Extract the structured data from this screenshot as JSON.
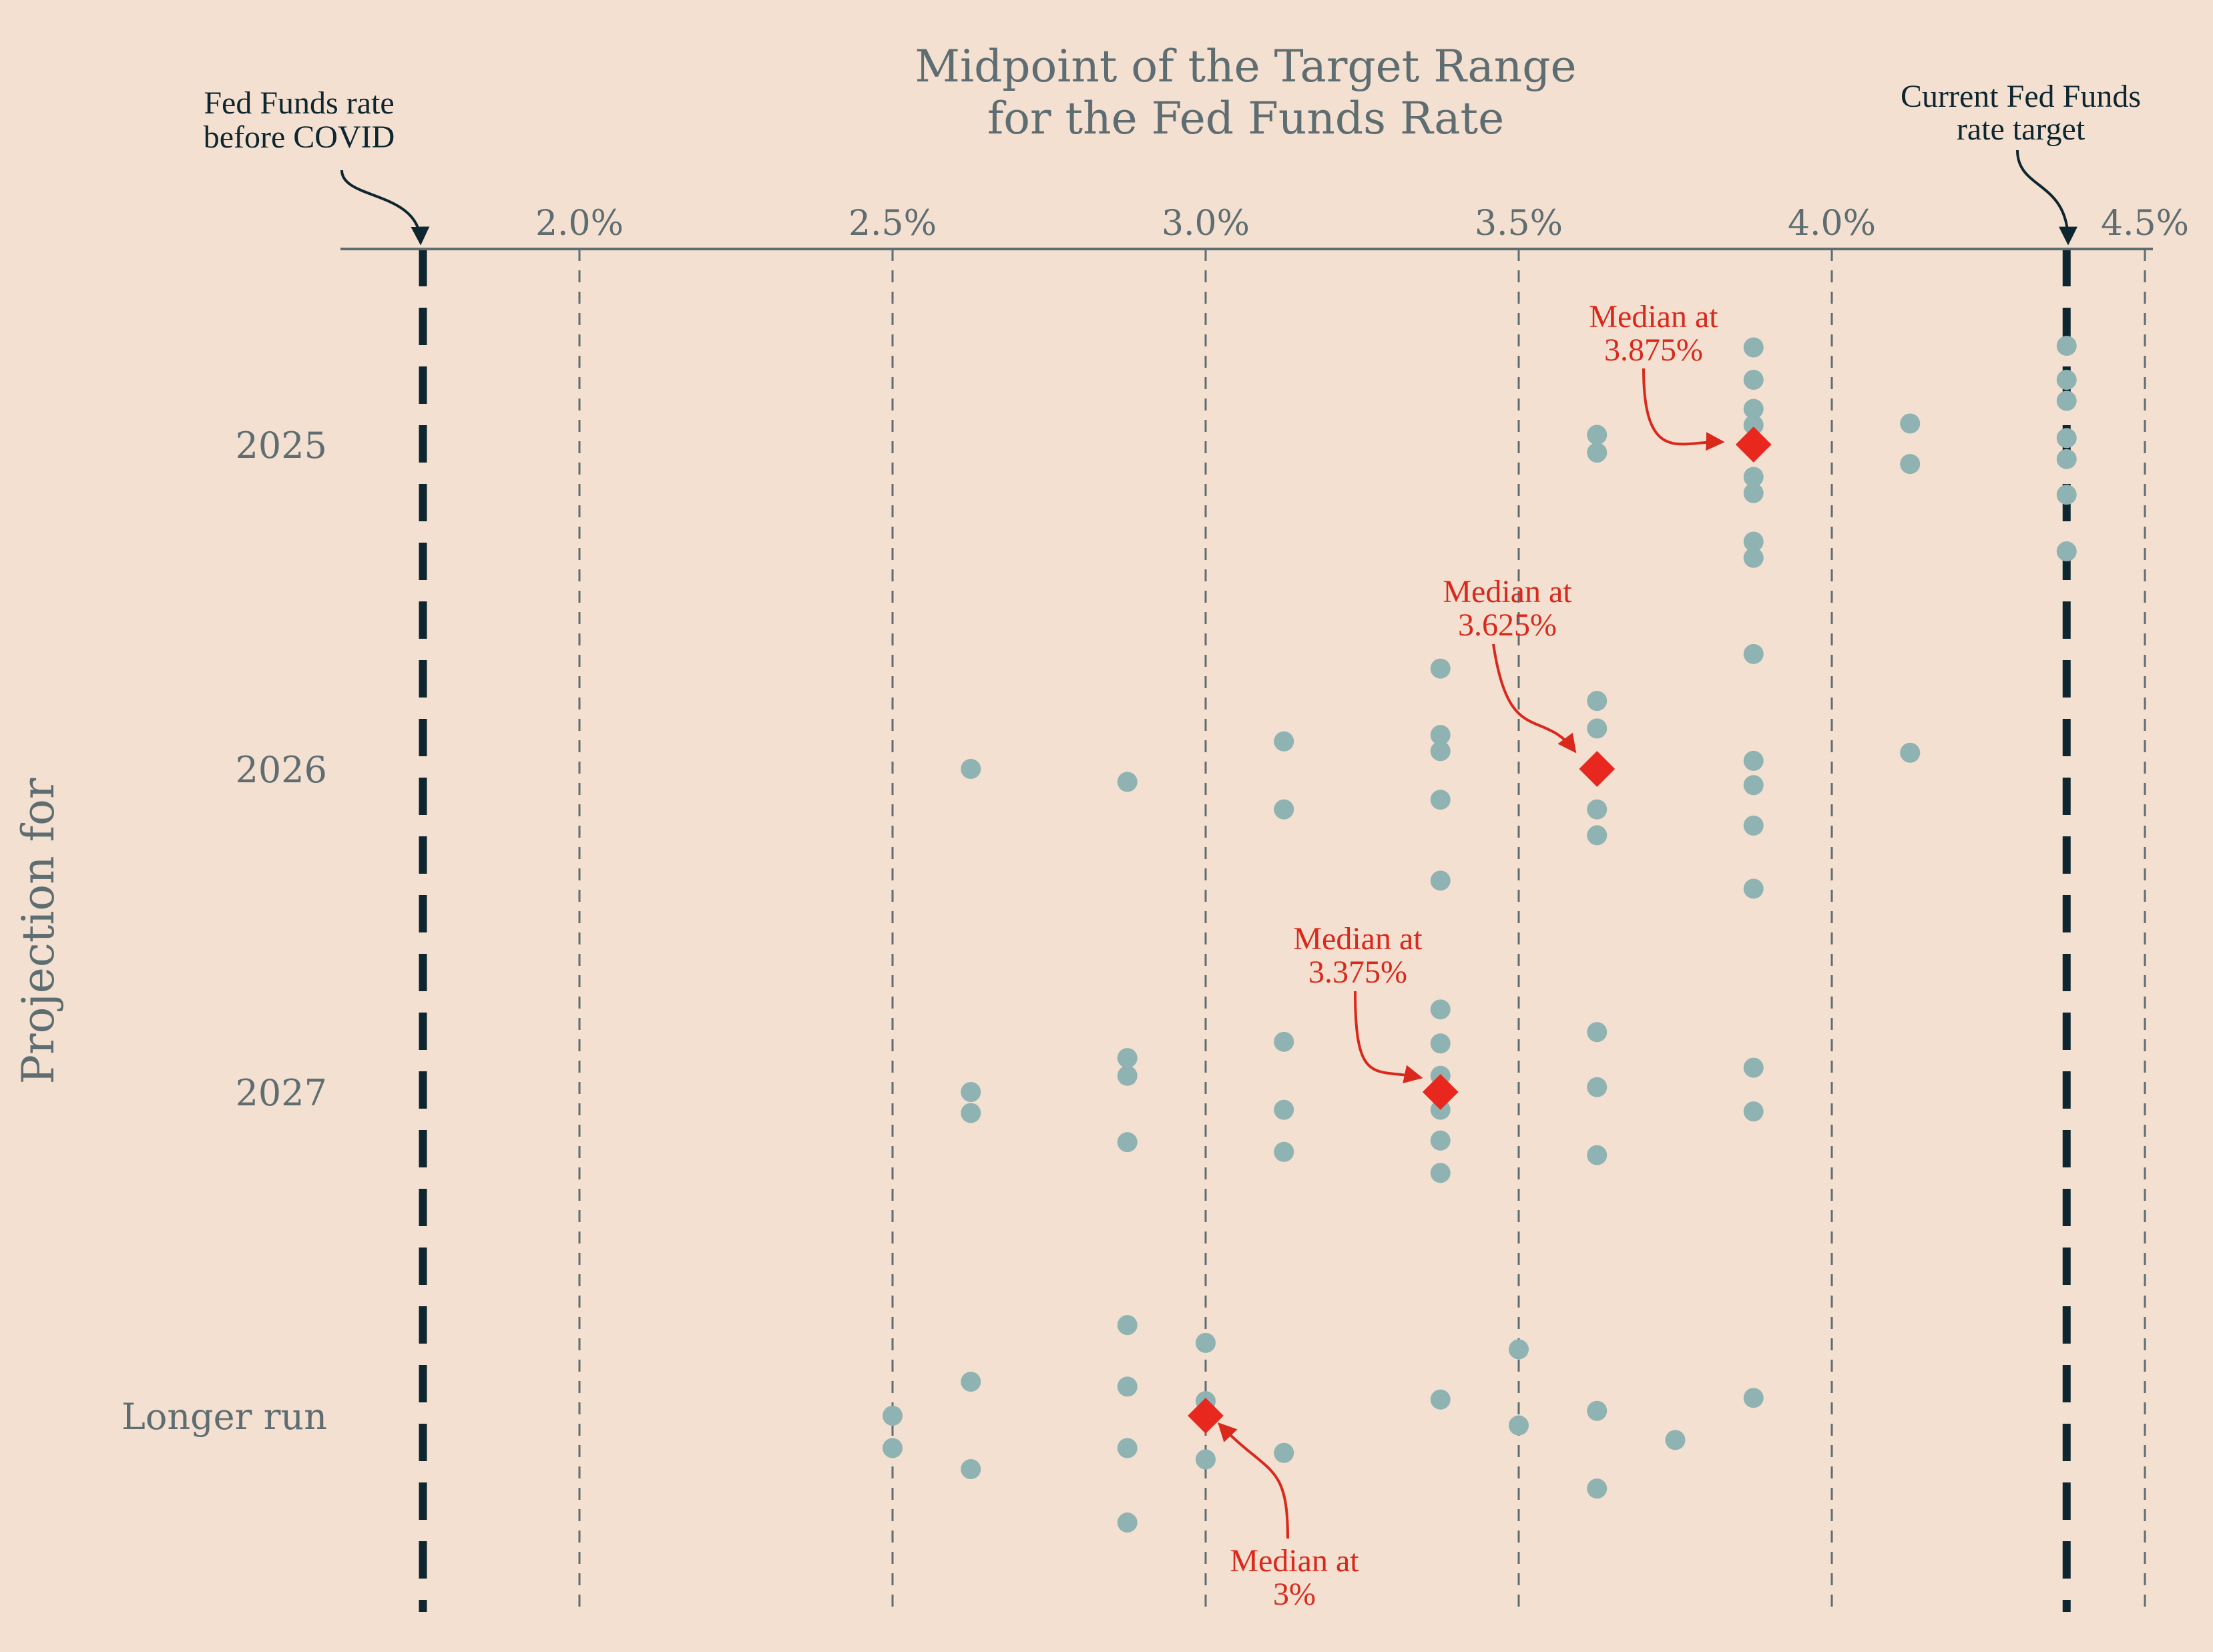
{
  "chart_data": {
    "type": "scatter",
    "title_lines": [
      "Midpoint of the Target Range",
      "for the Fed Funds Rate"
    ],
    "ylabel": "Projection for",
    "xlim": [
      1.625,
      4.55
    ],
    "xticks": [
      2.0,
      2.5,
      3.0,
      3.5,
      4.0,
      4.5
    ],
    "xtick_labels": [
      "2.0%",
      "2.5%",
      "3.0%",
      "3.5%",
      "4.0%",
      "4.5%"
    ],
    "categories": [
      "2025",
      "2026",
      "2027",
      "Longer run"
    ],
    "reference_lines": [
      {
        "label_lines": [
          "Fed Funds rate",
          "before COVID"
        ],
        "value": 1.75
      },
      {
        "label_lines": [
          "Current Fed Funds",
          "rate target"
        ],
        "value": 4.375
      }
    ],
    "colors": {
      "background": "#f3e0d0",
      "dot": "#8fb2b2",
      "median": "#e8281e",
      "median_text": "#d9281c",
      "reference_line": "#0d2630",
      "grid": "#5e6d72",
      "text": "#5e6d72"
    },
    "series": [
      {
        "category": "2025",
        "median": 3.875,
        "median_label_lines": [
          "Median at",
          "3.875%"
        ],
        "points": [
          {
            "x": 3.625,
            "offset": 0.03
          },
          {
            "x": 3.625,
            "offset": -0.025
          },
          {
            "x": 3.875,
            "offset": 0.3
          },
          {
            "x": 3.875,
            "offset": 0.2
          },
          {
            "x": 3.875,
            "offset": 0.11
          },
          {
            "x": 3.875,
            "offset": 0.06
          },
          {
            "x": 3.875,
            "offset": -0.1
          },
          {
            "x": 3.875,
            "offset": -0.15
          },
          {
            "x": 3.875,
            "offset": -0.3
          },
          {
            "x": 3.875,
            "offset": -0.35
          },
          {
            "x": 4.125,
            "offset": 0.065
          },
          {
            "x": 4.125,
            "offset": -0.06
          },
          {
            "x": 4.375,
            "offset": 0.305
          },
          {
            "x": 4.375,
            "offset": 0.2
          },
          {
            "x": 4.375,
            "offset": 0.135
          },
          {
            "x": 4.375,
            "offset": 0.02
          },
          {
            "x": 4.375,
            "offset": -0.045
          },
          {
            "x": 4.375,
            "offset": -0.155
          },
          {
            "x": 4.375,
            "offset": -0.33
          }
        ]
      },
      {
        "category": "2026",
        "median": 3.625,
        "median_label_lines": [
          "Median at",
          "3.625%"
        ],
        "points": [
          {
            "x": 2.625,
            "offset": 0.0
          },
          {
            "x": 2.875,
            "offset": -0.04
          },
          {
            "x": 3.125,
            "offset": 0.085
          },
          {
            "x": 3.125,
            "offset": -0.125
          },
          {
            "x": 3.375,
            "offset": 0.31
          },
          {
            "x": 3.375,
            "offset": 0.105
          },
          {
            "x": 3.375,
            "offset": 0.055
          },
          {
            "x": 3.375,
            "offset": -0.095
          },
          {
            "x": 3.375,
            "offset": -0.345
          },
          {
            "x": 3.625,
            "offset": 0.21
          },
          {
            "x": 3.625,
            "offset": 0.125
          },
          {
            "x": 3.625,
            "offset": -0.125
          },
          {
            "x": 3.625,
            "offset": -0.205
          },
          {
            "x": 3.875,
            "offset": 0.355
          },
          {
            "x": 3.875,
            "offset": 0.025
          },
          {
            "x": 3.875,
            "offset": -0.05
          },
          {
            "x": 3.875,
            "offset": -0.175
          },
          {
            "x": 3.875,
            "offset": -0.37
          },
          {
            "x": 4.125,
            "offset": 0.05
          }
        ]
      },
      {
        "category": "2027",
        "median": 3.375,
        "median_label_lines": [
          "Median at",
          "3.375%"
        ],
        "points": [
          {
            "x": 2.625,
            "offset": 0.0
          },
          {
            "x": 2.625,
            "offset": -0.065
          },
          {
            "x": 2.875,
            "offset": 0.105
          },
          {
            "x": 2.875,
            "offset": 0.05
          },
          {
            "x": 2.875,
            "offset": -0.155
          },
          {
            "x": 3.125,
            "offset": 0.155
          },
          {
            "x": 3.125,
            "offset": -0.055
          },
          {
            "x": 3.125,
            "offset": -0.185
          },
          {
            "x": 3.375,
            "offset": 0.255
          },
          {
            "x": 3.375,
            "offset": 0.15
          },
          {
            "x": 3.375,
            "offset": 0.05
          },
          {
            "x": 3.375,
            "offset": -0.055
          },
          {
            "x": 3.375,
            "offset": -0.15
          },
          {
            "x": 3.375,
            "offset": -0.25
          },
          {
            "x": 3.625,
            "offset": 0.185
          },
          {
            "x": 3.625,
            "offset": 0.015
          },
          {
            "x": 3.625,
            "offset": -0.195
          },
          {
            "x": 3.875,
            "offset": 0.075
          },
          {
            "x": 3.875,
            "offset": -0.06
          }
        ]
      },
      {
        "category": "Longer run",
        "median": 3.0,
        "median_label_lines": [
          "Median at",
          "3%"
        ],
        "points": [
          {
            "x": 2.5,
            "offset": 0.0
          },
          {
            "x": 2.5,
            "offset": -0.1
          },
          {
            "x": 2.625,
            "offset": 0.105
          },
          {
            "x": 2.625,
            "offset": -0.165
          },
          {
            "x": 2.875,
            "offset": 0.28
          },
          {
            "x": 2.875,
            "offset": 0.09
          },
          {
            "x": 2.875,
            "offset": -0.1
          },
          {
            "x": 2.875,
            "offset": -0.33
          },
          {
            "x": 3.0,
            "offset": 0.225
          },
          {
            "x": 3.0,
            "offset": 0.045
          },
          {
            "x": 3.0,
            "offset": -0.135
          },
          {
            "x": 3.125,
            "offset": -0.115
          },
          {
            "x": 3.375,
            "offset": 0.05
          },
          {
            "x": 3.5,
            "offset": 0.205
          },
          {
            "x": 3.5,
            "offset": -0.03
          },
          {
            "x": 3.625,
            "offset": 0.015
          },
          {
            "x": 3.625,
            "offset": -0.225
          },
          {
            "x": 3.75,
            "offset": -0.075
          },
          {
            "x": 3.875,
            "offset": 0.055
          }
        ]
      }
    ]
  }
}
